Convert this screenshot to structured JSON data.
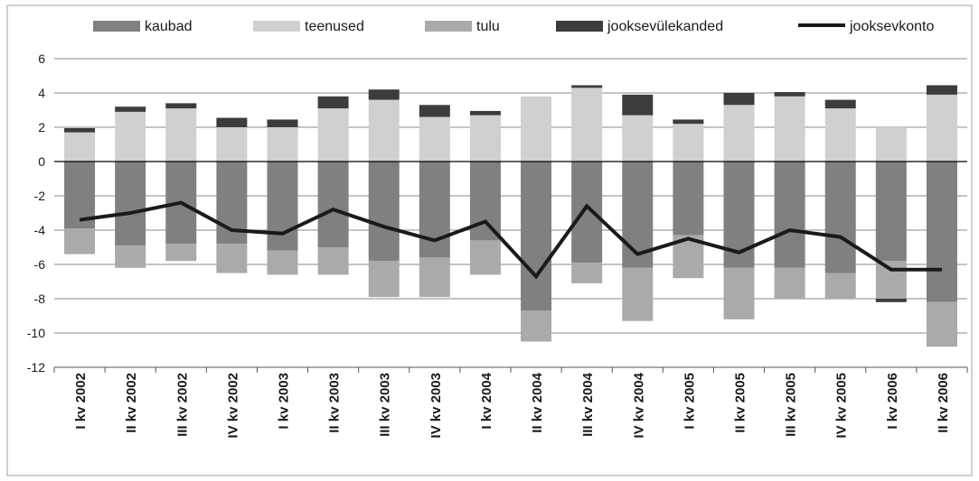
{
  "chart_data": {
    "type": "bar",
    "stacked": true,
    "categories": [
      "I kv 2002",
      "II kv 2002",
      "III kv 2002",
      "IV kv 2002",
      "I kv 2003",
      "II kv 2003",
      "III kv 2003",
      "IV kv 2003",
      "I kv 2004",
      "II kv 2004",
      "III kv 2004",
      "IV kv 2004",
      "I kv 2005",
      "II kv 2005",
      "III kv 2005",
      "IV kv 2005",
      "I kv 2006",
      "II kv 2006"
    ],
    "series": [
      {
        "name": "kaubad",
        "type": "bar",
        "color": "#808080",
        "values": [
          -3.9,
          -4.9,
          -4.8,
          -4.8,
          -5.2,
          -5.0,
          -5.8,
          -5.6,
          -4.6,
          -8.7,
          -5.9,
          -6.2,
          -4.3,
          -6.2,
          -6.2,
          -6.5,
          -5.8,
          -8.2
        ]
      },
      {
        "name": "teenused",
        "type": "bar",
        "color": "#d0d0d0",
        "values": [
          1.7,
          2.9,
          3.1,
          2.0,
          2.0,
          3.1,
          3.6,
          2.6,
          2.7,
          3.8,
          4.3,
          2.7,
          2.2,
          3.3,
          3.8,
          3.1,
          2.0,
          3.9
        ]
      },
      {
        "name": "tulu",
        "type": "bar",
        "color": "#aaaaaa",
        "values": [
          -1.5,
          -1.3,
          -1.0,
          -1.7,
          -1.4,
          -1.6,
          -2.1,
          -2.3,
          -2.0,
          -1.8,
          -1.2,
          -3.1,
          -2.5,
          -3.0,
          -1.8,
          -1.5,
          -2.2,
          -2.6
        ]
      },
      {
        "name": "jooksevülekanded",
        "type": "bar",
        "color": "#3c3c3c",
        "values": [
          0.25,
          0.3,
          0.3,
          0.55,
          0.45,
          0.7,
          0.6,
          0.7,
          0.25,
          0.0,
          0.15,
          1.2,
          0.25,
          0.7,
          0.25,
          0.5,
          -0.2,
          0.55
        ]
      },
      {
        "name": "jooksevkonto",
        "type": "line",
        "color": "#1a1a1a",
        "values": [
          -3.4,
          -3.0,
          -2.4,
          -4.0,
          -4.2,
          -2.8,
          -3.8,
          -4.6,
          -3.5,
          -6.7,
          -2.6,
          -5.4,
          -4.5,
          -5.3,
          -4.0,
          -4.4,
          -6.3,
          -6.3
        ]
      }
    ],
    "ylim": [
      -12,
      6
    ],
    "yticks": [
      6,
      4,
      2,
      0,
      -2,
      -4,
      -6,
      -8,
      -10,
      -12
    ],
    "grid": true,
    "legend": "top",
    "title": "",
    "xlabel": "",
    "ylabel": ""
  }
}
